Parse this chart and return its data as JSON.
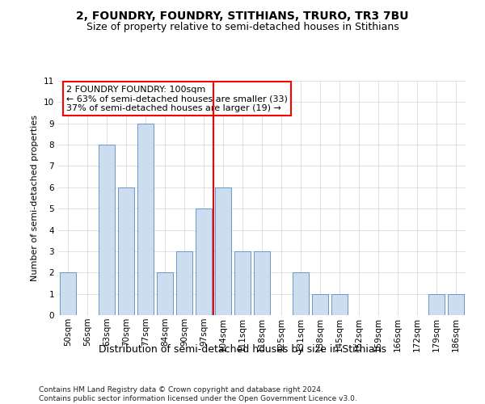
{
  "title": "2, FOUNDRY, FOUNDRY, STITHIANS, TRURO, TR3 7BU",
  "subtitle": "Size of property relative to semi-detached houses in Stithians",
  "xlabel": "Distribution of semi-detached houses by size in Stithians",
  "ylabel": "Number of semi-detached properties",
  "categories": [
    "50sqm",
    "56sqm",
    "63sqm",
    "70sqm",
    "77sqm",
    "84sqm",
    "90sqm",
    "97sqm",
    "104sqm",
    "111sqm",
    "118sqm",
    "125sqm",
    "131sqm",
    "138sqm",
    "145sqm",
    "152sqm",
    "159sqm",
    "166sqm",
    "172sqm",
    "179sqm",
    "186sqm"
  ],
  "values": [
    2,
    0,
    8,
    6,
    9,
    2,
    3,
    5,
    6,
    3,
    3,
    0,
    2,
    1,
    1,
    0,
    0,
    0,
    0,
    1,
    1
  ],
  "bar_color": "#ccddf0",
  "bar_edge_color": "#6699cc",
  "highlight_line_color": "red",
  "highlight_bar_index": 8,
  "annotation_text": "2 FOUNDRY FOUNDRY: 100sqm\n← 63% of semi-detached houses are smaller (33)\n37% of semi-detached houses are larger (19) →",
  "annotation_box_color": "white",
  "annotation_box_edge_color": "red",
  "ylim": [
    0,
    11
  ],
  "yticks": [
    0,
    1,
    2,
    3,
    4,
    5,
    6,
    7,
    8,
    9,
    10,
    11
  ],
  "footer": "Contains HM Land Registry data © Crown copyright and database right 2024.\nContains public sector information licensed under the Open Government Licence v3.0.",
  "title_fontsize": 10,
  "subtitle_fontsize": 9,
  "xlabel_fontsize": 9,
  "ylabel_fontsize": 8,
  "tick_fontsize": 7.5,
  "footer_fontsize": 6.5,
  "annotation_fontsize": 8
}
